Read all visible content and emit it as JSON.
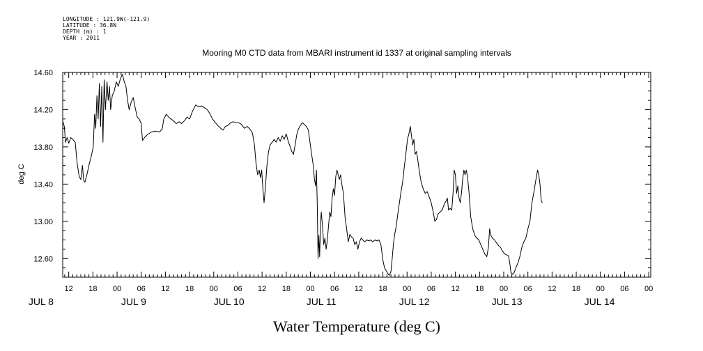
{
  "header": {
    "longitude": "LONGITUDE : 121.9W(-121.9)",
    "latitude": "LATITUDE : 36.8N",
    "depth": "DEPTH (m) : 1",
    "year": "YEAR : 2011"
  },
  "chart_data": {
    "type": "line",
    "title": "Mooring M0 CTD data from MBARI instrument id 1337 at original sampling intervals",
    "xlabel": "Water Temperature (deg C)",
    "ylabel": "deg C",
    "ylim": [
      12.4,
      14.6
    ],
    "yticks": [
      12.6,
      13.0,
      13.4,
      13.8,
      14.2,
      14.6
    ],
    "ytick_labels": [
      "12.60",
      "13.00",
      "13.40",
      "13.80",
      "14.20",
      "14.60"
    ],
    "x_unit": "hours since JUL 8 00:00",
    "xlim": [
      10.5,
      156.5
    ],
    "hour_ticks": [
      {
        "h": 12,
        "label": "12"
      },
      {
        "h": 18,
        "label": "18"
      },
      {
        "h": 24,
        "label": "00"
      },
      {
        "h": 30,
        "label": "06"
      },
      {
        "h": 36,
        "label": "12"
      },
      {
        "h": 42,
        "label": "18"
      },
      {
        "h": 48,
        "label": "00"
      },
      {
        "h": 54,
        "label": "06"
      },
      {
        "h": 60,
        "label": "12"
      },
      {
        "h": 66,
        "label": "18"
      },
      {
        "h": 72,
        "label": "00"
      },
      {
        "h": 78,
        "label": "06"
      },
      {
        "h": 84,
        "label": "12"
      },
      {
        "h": 90,
        "label": "18"
      },
      {
        "h": 96,
        "label": "00"
      },
      {
        "h": 102,
        "label": "06"
      },
      {
        "h": 108,
        "label": "12"
      },
      {
        "h": 114,
        "label": "18"
      },
      {
        "h": 120,
        "label": "00"
      },
      {
        "h": 126,
        "label": "06"
      },
      {
        "h": 132,
        "label": "12"
      },
      {
        "h": 138,
        "label": "18"
      },
      {
        "h": 144,
        "label": "00"
      },
      {
        "h": 150,
        "label": "06"
      },
      {
        "h": 156,
        "label": "00"
      }
    ],
    "day_labels": [
      {
        "h": 2,
        "label": "JUL  8"
      },
      {
        "h": 25,
        "label": "JUL  9"
      },
      {
        "h": 48,
        "label": "JUL 10"
      },
      {
        "h": 71,
        "label": "JUL 11"
      },
      {
        "h": 94,
        "label": "JUL 12"
      },
      {
        "h": 117,
        "label": "JUL 13"
      },
      {
        "h": 140,
        "label": "JUL 14"
      }
    ],
    "series": [
      {
        "color": "#000000",
        "points": [
          [
            10.5,
            14.08
          ],
          [
            10.9,
            14.02
          ],
          [
            11.2,
            13.85
          ],
          [
            11.6,
            13.9
          ],
          [
            12.0,
            13.84
          ],
          [
            12.5,
            13.9
          ],
          [
            13.0,
            13.88
          ],
          [
            13.6,
            13.85
          ],
          [
            14.1,
            13.62
          ],
          [
            14.6,
            13.48
          ],
          [
            15.0,
            13.45
          ],
          [
            15.4,
            13.6
          ],
          [
            15.7,
            13.44
          ],
          [
            16.0,
            13.42
          ],
          [
            16.5,
            13.5
          ],
          [
            17.0,
            13.6
          ],
          [
            17.6,
            13.7
          ],
          [
            18.1,
            13.8
          ],
          [
            18.4,
            14.15
          ],
          [
            18.7,
            14.0
          ],
          [
            19.0,
            14.35
          ],
          [
            19.3,
            14.1
          ],
          [
            19.6,
            14.48
          ],
          [
            19.9,
            14.02
          ],
          [
            20.2,
            14.45
          ],
          [
            20.5,
            13.85
          ],
          [
            20.8,
            14.52
          ],
          [
            21.1,
            14.2
          ],
          [
            21.5,
            14.5
          ],
          [
            21.8,
            14.3
          ],
          [
            22.1,
            14.45
          ],
          [
            22.4,
            14.2
          ],
          [
            22.8,
            14.35
          ],
          [
            23.3,
            14.4
          ],
          [
            23.8,
            14.5
          ],
          [
            24.3,
            14.45
          ],
          [
            24.8,
            14.53
          ],
          [
            25.3,
            14.58
          ],
          [
            25.8,
            14.5
          ],
          [
            26.2,
            14.45
          ],
          [
            26.6,
            14.3
          ],
          [
            27.0,
            14.2
          ],
          [
            27.5,
            14.28
          ],
          [
            28.0,
            14.33
          ],
          [
            28.5,
            14.22
          ],
          [
            29.0,
            14.12
          ],
          [
            29.5,
            14.1
          ],
          [
            30.0,
            14.05
          ],
          [
            30.3,
            13.87
          ],
          [
            30.8,
            13.9
          ],
          [
            31.5,
            13.93
          ],
          [
            32.5,
            13.96
          ],
          [
            33.5,
            13.97
          ],
          [
            34.5,
            13.96
          ],
          [
            35.2,
            13.99
          ],
          [
            35.6,
            14.1
          ],
          [
            36.2,
            14.15
          ],
          [
            36.8,
            14.12
          ],
          [
            37.4,
            14.1
          ],
          [
            38.0,
            14.08
          ],
          [
            38.7,
            14.05
          ],
          [
            39.4,
            14.07
          ],
          [
            40.0,
            14.05
          ],
          [
            40.7,
            14.08
          ],
          [
            41.4,
            14.12
          ],
          [
            42.0,
            14.1
          ],
          [
            42.7,
            14.18
          ],
          [
            43.5,
            14.25
          ],
          [
            44.3,
            14.23
          ],
          [
            45.0,
            14.24
          ],
          [
            45.7,
            14.22
          ],
          [
            46.4,
            14.2
          ],
          [
            47.0,
            14.16
          ],
          [
            47.7,
            14.1
          ],
          [
            48.4,
            14.06
          ],
          [
            49.0,
            14.03
          ],
          [
            49.7,
            14.0
          ],
          [
            50.3,
            13.98
          ],
          [
            50.9,
            14.02
          ],
          [
            51.5,
            14.03
          ],
          [
            52.2,
            14.06
          ],
          [
            52.8,
            14.07
          ],
          [
            53.5,
            14.06
          ],
          [
            54.2,
            14.06
          ],
          [
            54.9,
            14.04
          ],
          [
            55.6,
            14.0
          ],
          [
            56.3,
            14.02
          ],
          [
            57.0,
            13.99
          ],
          [
            57.6,
            13.95
          ],
          [
            58.1,
            13.82
          ],
          [
            58.5,
            13.62
          ],
          [
            58.9,
            13.5
          ],
          [
            59.3,
            13.55
          ],
          [
            59.6,
            13.47
          ],
          [
            59.9,
            13.55
          ],
          [
            60.2,
            13.35
          ],
          [
            60.5,
            13.2
          ],
          [
            60.8,
            13.35
          ],
          [
            61.2,
            13.6
          ],
          [
            61.6,
            13.75
          ],
          [
            62.0,
            13.82
          ],
          [
            62.5,
            13.85
          ],
          [
            63.0,
            13.88
          ],
          [
            63.5,
            13.85
          ],
          [
            64.0,
            13.9
          ],
          [
            64.5,
            13.86
          ],
          [
            65.0,
            13.92
          ],
          [
            65.5,
            13.88
          ],
          [
            66.0,
            13.94
          ],
          [
            66.5,
            13.86
          ],
          [
            67.0,
            13.8
          ],
          [
            67.4,
            13.75
          ],
          [
            67.8,
            13.72
          ],
          [
            68.2,
            13.82
          ],
          [
            68.6,
            13.93
          ],
          [
            69.0,
            13.99
          ],
          [
            69.5,
            14.03
          ],
          [
            70.0,
            14.06
          ],
          [
            70.5,
            14.04
          ],
          [
            71.0,
            14.02
          ],
          [
            71.5,
            13.98
          ],
          [
            71.9,
            13.85
          ],
          [
            72.3,
            13.72
          ],
          [
            72.7,
            13.6
          ],
          [
            73.0,
            13.45
          ],
          [
            73.3,
            13.38
          ],
          [
            73.5,
            13.55
          ],
          [
            73.7,
            13.2
          ],
          [
            73.9,
            12.6
          ],
          [
            74.1,
            12.85
          ],
          [
            74.3,
            12.62
          ],
          [
            74.5,
            12.95
          ],
          [
            74.7,
            13.1
          ],
          [
            75.0,
            12.95
          ],
          [
            75.3,
            12.75
          ],
          [
            75.6,
            12.82
          ],
          [
            75.9,
            12.7
          ],
          [
            76.2,
            12.8
          ],
          [
            76.5,
            12.95
          ],
          [
            76.8,
            13.1
          ],
          [
            77.1,
            13.05
          ],
          [
            77.4,
            13.25
          ],
          [
            77.7,
            13.35
          ],
          [
            78.0,
            13.28
          ],
          [
            78.3,
            13.48
          ],
          [
            78.6,
            13.55
          ],
          [
            78.9,
            13.5
          ],
          [
            79.2,
            13.45
          ],
          [
            79.5,
            13.5
          ],
          [
            79.8,
            13.4
          ],
          [
            80.2,
            13.3
          ],
          [
            80.6,
            13.05
          ],
          [
            81.0,
            12.92
          ],
          [
            81.4,
            12.78
          ],
          [
            81.8,
            12.86
          ],
          [
            82.2,
            12.83
          ],
          [
            82.6,
            12.82
          ],
          [
            83.0,
            12.75
          ],
          [
            83.4,
            12.78
          ],
          [
            83.8,
            12.7
          ],
          [
            84.2,
            12.78
          ],
          [
            84.6,
            12.82
          ],
          [
            85.0,
            12.8
          ],
          [
            85.5,
            12.78
          ],
          [
            86.0,
            12.8
          ],
          [
            86.5,
            12.79
          ],
          [
            87.0,
            12.8
          ],
          [
            87.5,
            12.78
          ],
          [
            88.0,
            12.8
          ],
          [
            88.5,
            12.79
          ],
          [
            89.0,
            12.8
          ],
          [
            89.5,
            12.75
          ],
          [
            90.0,
            12.58
          ],
          [
            90.4,
            12.5
          ],
          [
            90.8,
            12.47
          ],
          [
            91.2,
            12.44
          ],
          [
            91.6,
            12.42
          ],
          [
            92.0,
            12.46
          ],
          [
            92.3,
            12.6
          ],
          [
            92.6,
            12.75
          ],
          [
            92.9,
            12.85
          ],
          [
            93.3,
            12.95
          ],
          [
            93.7,
            13.08
          ],
          [
            94.1,
            13.2
          ],
          [
            94.5,
            13.32
          ],
          [
            94.9,
            13.42
          ],
          [
            95.3,
            13.58
          ],
          [
            95.7,
            13.72
          ],
          [
            96.1,
            13.88
          ],
          [
            96.5,
            13.95
          ],
          [
            96.8,
            14.02
          ],
          [
            97.1,
            13.92
          ],
          [
            97.4,
            13.82
          ],
          [
            97.7,
            13.88
          ],
          [
            98.0,
            13.72
          ],
          [
            98.3,
            13.75
          ],
          [
            98.6,
            13.68
          ],
          [
            99.0,
            13.55
          ],
          [
            99.5,
            13.42
          ],
          [
            100.0,
            13.35
          ],
          [
            100.5,
            13.3
          ],
          [
            101.0,
            13.32
          ],
          [
            101.5,
            13.26
          ],
          [
            102.0,
            13.2
          ],
          [
            102.5,
            13.1
          ],
          [
            102.9,
            13.0
          ],
          [
            103.3,
            13.02
          ],
          [
            103.7,
            13.08
          ],
          [
            104.2,
            13.1
          ],
          [
            104.7,
            13.12
          ],
          [
            105.2,
            13.18
          ],
          [
            105.7,
            13.22
          ],
          [
            106.0,
            13.25
          ],
          [
            106.3,
            13.12
          ],
          [
            106.7,
            13.14
          ],
          [
            107.1,
            13.12
          ],
          [
            107.4,
            13.3
          ],
          [
            107.7,
            13.55
          ],
          [
            108.0,
            13.5
          ],
          [
            108.3,
            13.3
          ],
          [
            108.6,
            13.38
          ],
          [
            108.9,
            13.25
          ],
          [
            109.2,
            13.2
          ],
          [
            109.5,
            13.3
          ],
          [
            109.8,
            13.45
          ],
          [
            110.1,
            13.55
          ],
          [
            110.4,
            13.5
          ],
          [
            110.7,
            13.55
          ],
          [
            111.0,
            13.48
          ],
          [
            111.4,
            13.3
          ],
          [
            111.8,
            13.05
          ],
          [
            112.3,
            12.92
          ],
          [
            112.8,
            12.85
          ],
          [
            113.3,
            12.82
          ],
          [
            113.8,
            12.8
          ],
          [
            114.3,
            12.75
          ],
          [
            114.8,
            12.7
          ],
          [
            115.3,
            12.65
          ],
          [
            115.8,
            12.62
          ],
          [
            116.2,
            12.72
          ],
          [
            116.5,
            12.92
          ],
          [
            116.8,
            12.85
          ],
          [
            117.2,
            12.82
          ],
          [
            117.7,
            12.8
          ],
          [
            118.2,
            12.77
          ],
          [
            118.7,
            12.74
          ],
          [
            119.2,
            12.72
          ],
          [
            119.7,
            12.68
          ],
          [
            120.2,
            12.65
          ],
          [
            120.7,
            12.64
          ],
          [
            121.2,
            12.63
          ],
          [
            121.5,
            12.55
          ],
          [
            121.8,
            12.45
          ],
          [
            122.2,
            12.43
          ],
          [
            122.6,
            12.45
          ],
          [
            123.0,
            12.5
          ],
          [
            123.5,
            12.55
          ],
          [
            124.0,
            12.62
          ],
          [
            124.5,
            12.72
          ],
          [
            125.0,
            12.78
          ],
          [
            125.5,
            12.82
          ],
          [
            126.0,
            12.92
          ],
          [
            126.5,
            13.0
          ],
          [
            127.0,
            13.2
          ],
          [
            127.5,
            13.32
          ],
          [
            128.0,
            13.45
          ],
          [
            128.4,
            13.55
          ],
          [
            128.7,
            13.5
          ],
          [
            129.0,
            13.4
          ],
          [
            129.3,
            13.22
          ],
          [
            129.6,
            13.2
          ]
        ]
      }
    ]
  }
}
